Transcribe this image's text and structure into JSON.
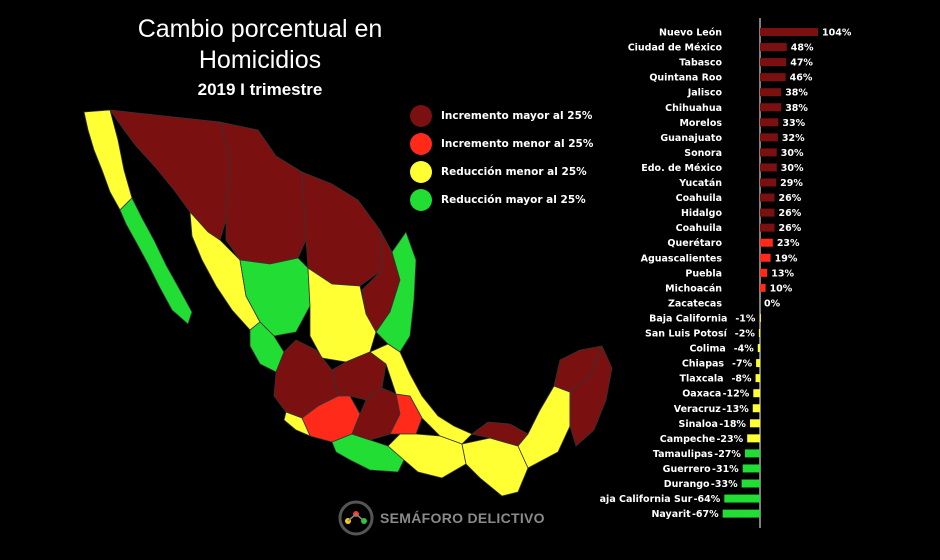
{
  "title": "Cambio porcentual en Homicidios",
  "subtitle": "2019 I trimestre",
  "legend": {
    "items": [
      {
        "label": "Incremento mayor al 25%",
        "color": "#7a1010"
      },
      {
        "label": "Incremento menor al 25%",
        "color": "#ff2a1a"
      },
      {
        "label": "Reducción menor al 25%",
        "color": "#ffff33"
      },
      {
        "label": "Reducción mayor al 25%",
        "color": "#22dd33"
      }
    ]
  },
  "logo": {
    "text": "SEMÁFORO DELICTIVO",
    "icon": "semaforo-logo-icon"
  },
  "chart_data": {
    "type": "bar",
    "orientation": "horizontal",
    "categories": [
      "Nuevo León",
      "Ciudad de México",
      "Tabasco",
      "Quintana Roo",
      "Jalisco",
      "Chihuahua",
      "Morelos",
      "Guanajuato",
      "Sonora",
      "Edo. de México",
      "Yucatán",
      "Coahuila",
      "Hidalgo",
      "Coahuila",
      "Querétaro",
      "Aguascalientes",
      "Puebla",
      "Michoacán",
      "Zacatecas",
      "Baja California",
      "San Luis Potosí",
      "Colima",
      "Chiapas",
      "Tlaxcala",
      "Oaxaca",
      "Veracruz",
      "Sinaloa",
      "Campeche",
      "Tamaulipas",
      "Guerrero",
      "Durango",
      "Baja California Sur",
      "Nayarit"
    ],
    "values": [
      104,
      48,
      47,
      46,
      38,
      38,
      33,
      32,
      30,
      30,
      29,
      26,
      26,
      26,
      23,
      19,
      13,
      10,
      0,
      -1,
      -2,
      -4,
      -7,
      -8,
      -12,
      -13,
      -18,
      -23,
      -27,
      -31,
      -33,
      -64,
      -67
    ],
    "value_labels": [
      "104%",
      "48%",
      "47%",
      "46%",
      "38%",
      "38%",
      "33%",
      "32%",
      "30%",
      "30%",
      "29%",
      "26%",
      "26%",
      "26%",
      "23%",
      "19%",
      "13%",
      "10%",
      "0%",
      "-1%",
      "-2%",
      "-4%",
      "-7%",
      "-8%",
      "-12%",
      "-13%",
      "-18%",
      "-23%",
      "-27%",
      "-31%",
      "-33%",
      "-64%",
      "-67%"
    ],
    "colors": {
      "dark_red": "#7a1010",
      "red": "#ff2a1a",
      "yellow": "#ffff33",
      "green": "#22dd33"
    },
    "category_colors": [
      "dark_red",
      "dark_red",
      "dark_red",
      "dark_red",
      "dark_red",
      "dark_red",
      "dark_red",
      "dark_red",
      "dark_red",
      "dark_red",
      "dark_red",
      "dark_red",
      "dark_red",
      "dark_red",
      "red",
      "red",
      "red",
      "red",
      "yellow",
      "yellow",
      "yellow",
      "yellow",
      "yellow",
      "yellow",
      "yellow",
      "yellow",
      "yellow",
      "yellow",
      "green",
      "green",
      "green",
      "green",
      "green"
    ],
    "xlim": [
      -67,
      104
    ],
    "grid": false,
    "legend_position": "top-left"
  }
}
